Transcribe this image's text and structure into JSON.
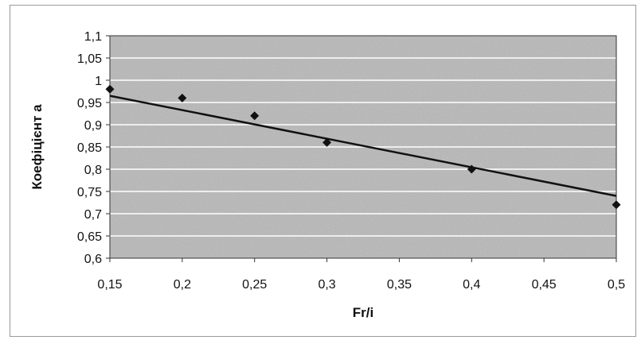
{
  "chart_data": {
    "type": "scatter",
    "xlabel": "Fr/i",
    "ylabel": "Коефіцієнт а",
    "xlim": [
      0.15,
      0.5
    ],
    "ylim": [
      0.6,
      1.1
    ],
    "x_ticks": [
      "0,15",
      "0,2",
      "0,25",
      "0,3",
      "0,35",
      "0,4",
      "0,45",
      "0,5"
    ],
    "y_ticks": [
      "0,6",
      "0,65",
      "0,7",
      "0,75",
      "0,8",
      "0,85",
      "0,9",
      "0,95",
      "1",
      "1,05",
      "1,1"
    ],
    "series": [
      {
        "x": [
          0.15,
          0.2,
          0.25,
          0.3,
          0.4,
          0.5
        ],
        "y": [
          0.98,
          0.96,
          0.92,
          0.86,
          0.8,
          0.72
        ]
      }
    ],
    "trendline": {
      "x": [
        0.15,
        0.5
      ],
      "y": [
        0.965,
        0.74
      ]
    },
    "grid": "horizontal major gridlines",
    "plot_background": "#b8b8b8",
    "marker": "diamond",
    "colors": {
      "marker": "#111111",
      "line": "#111111",
      "grid": "#ffffff"
    }
  }
}
